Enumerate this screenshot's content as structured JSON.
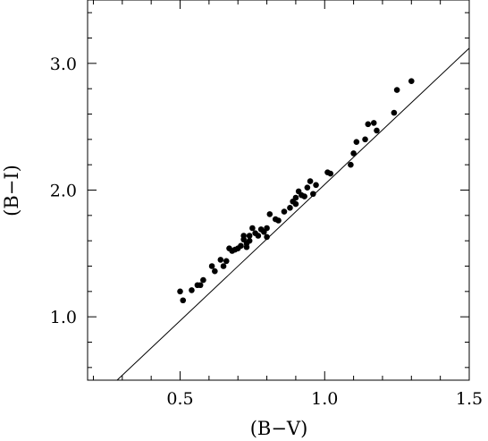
{
  "chart_data": {
    "type": "scatter",
    "title": "",
    "xlabel": "(B−V)",
    "ylabel": "(B−I)",
    "xlim": [
      0.18,
      1.5
    ],
    "ylim": [
      0.5,
      3.5
    ],
    "xticks": [
      0.5,
      1.0,
      1.5
    ],
    "xtick_labels": [
      "0.5",
      "1.0",
      "1.5"
    ],
    "yticks": [
      1.0,
      2.0,
      3.0
    ],
    "ytick_labels": [
      "1.0",
      "2.0",
      "3.0"
    ],
    "grid": false,
    "legend": "none",
    "series": [
      {
        "kind": "points",
        "color": "#000000",
        "points": [
          [
            0.5,
            1.2
          ],
          [
            0.51,
            1.13
          ],
          [
            0.54,
            1.21
          ],
          [
            0.56,
            1.25
          ],
          [
            0.57,
            1.25
          ],
          [
            0.58,
            1.29
          ],
          [
            0.61,
            1.4
          ],
          [
            0.62,
            1.36
          ],
          [
            0.64,
            1.45
          ],
          [
            0.65,
            1.4
          ],
          [
            0.66,
            1.44
          ],
          [
            0.67,
            1.54
          ],
          [
            0.68,
            1.52
          ],
          [
            0.69,
            1.53
          ],
          [
            0.7,
            1.54
          ],
          [
            0.71,
            1.56
          ],
          [
            0.72,
            1.61
          ],
          [
            0.72,
            1.64
          ],
          [
            0.73,
            1.55
          ],
          [
            0.73,
            1.58
          ],
          [
            0.74,
            1.6
          ],
          [
            0.74,
            1.64
          ],
          [
            0.75,
            1.7
          ],
          [
            0.76,
            1.66
          ],
          [
            0.77,
            1.64
          ],
          [
            0.78,
            1.69
          ],
          [
            0.79,
            1.67
          ],
          [
            0.8,
            1.7
          ],
          [
            0.8,
            1.63
          ],
          [
            0.81,
            1.81
          ],
          [
            0.83,
            1.77
          ],
          [
            0.84,
            1.76
          ],
          [
            0.86,
            1.83
          ],
          [
            0.88,
            1.86
          ],
          [
            0.89,
            1.91
          ],
          [
            0.9,
            1.94
          ],
          [
            0.9,
            1.89
          ],
          [
            0.91,
            1.99
          ],
          [
            0.92,
            1.96
          ],
          [
            0.93,
            1.95
          ],
          [
            0.94,
            2.02
          ],
          [
            0.95,
            2.07
          ],
          [
            0.96,
            1.97
          ],
          [
            0.97,
            2.04
          ],
          [
            1.01,
            2.14
          ],
          [
            1.02,
            2.13
          ],
          [
            1.09,
            2.2
          ],
          [
            1.1,
            2.29
          ],
          [
            1.11,
            2.38
          ],
          [
            1.14,
            2.4
          ],
          [
            1.15,
            2.52
          ],
          [
            1.17,
            2.53
          ],
          [
            1.18,
            2.47
          ],
          [
            1.24,
            2.61
          ],
          [
            1.25,
            2.79
          ],
          [
            1.3,
            2.86
          ]
        ]
      },
      {
        "kind": "line",
        "color": "#000000",
        "points": [
          [
            0.282,
            0.5
          ],
          [
            1.5,
            3.12
          ]
        ]
      }
    ]
  }
}
